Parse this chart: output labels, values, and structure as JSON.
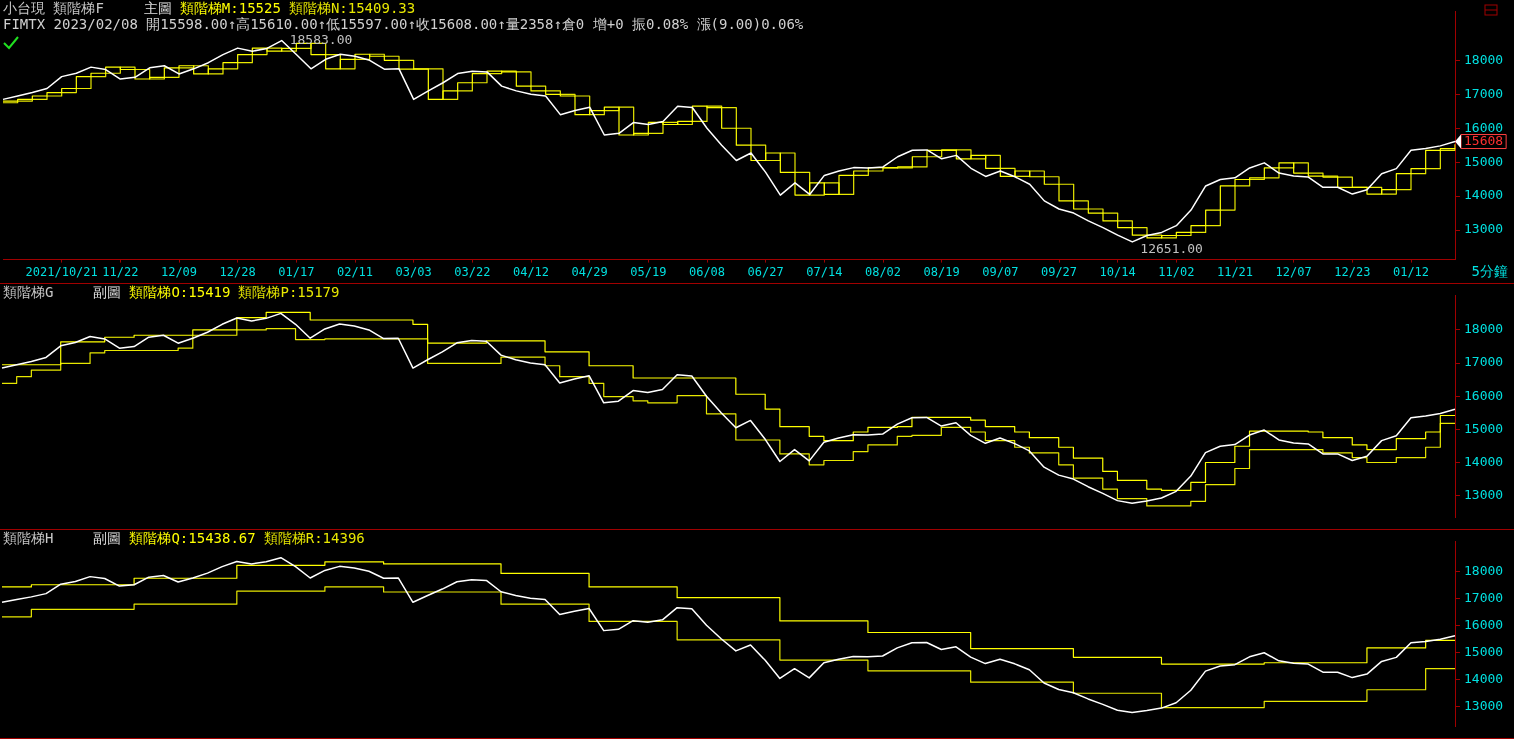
{
  "chart_data": [
    {
      "type": "line",
      "title": "小台現 類階梯F",
      "subtitle": "主圖",
      "xlabel": "5分鐘",
      "marker": "none",
      "annotations": [
        "FIMTX 2023/02/08 開15598.00↑高15610.00↑低15597.00↑收15608.00↑量2358↑倉0 增+0 振0.08% 漲(9.00)0.06%",
        "18583.00",
        "12651.00",
        "15608"
      ],
      "categories": [
        null,
        null,
        null,
        null,
        "2021/10/21",
        null,
        null,
        null,
        "11/22",
        null,
        null,
        null,
        "12/09",
        null,
        null,
        null,
        "12/28",
        null,
        null,
        null,
        "01/17",
        null,
        null,
        null,
        "02/11",
        null,
        null,
        null,
        "03/03",
        null,
        null,
        null,
        "03/22",
        null,
        null,
        null,
        "04/12",
        null,
        null,
        null,
        "04/29",
        null,
        null,
        null,
        "05/19",
        null,
        null,
        null,
        "06/08",
        null,
        null,
        null,
        "06/27",
        null,
        null,
        null,
        "07/14",
        null,
        null,
        null,
        "08/02",
        null,
        null,
        null,
        "08/19",
        null,
        null,
        null,
        "09/07",
        null,
        null,
        null,
        "09/27",
        null,
        null,
        null,
        "10/14",
        null,
        null,
        null,
        "11/02",
        null,
        null,
        null,
        "11/21",
        null,
        null,
        null,
        "12/07",
        null,
        null,
        null,
        "12/23",
        null,
        null,
        null,
        "01/12",
        null,
        null,
        null
      ],
      "series": [
        {
          "color": "#ffffff",
          "values": [
            16850,
            16950,
            17050,
            17170,
            17520,
            17620,
            17800,
            17730,
            17450,
            17500,
            17780,
            17840,
            17600,
            17750,
            17930,
            18170,
            18360,
            18270,
            18350,
            18583,
            18170,
            17750,
            18030,
            18180,
            18120,
            18000,
            17740,
            17750,
            16850,
            17100,
            17340,
            17610,
            17680,
            17660,
            17240,
            17100,
            17000,
            16950,
            16400,
            16520,
            16620,
            15800,
            15850,
            16170,
            16110,
            16200,
            16650,
            16610,
            16000,
            15500,
            15050,
            15270,
            14700,
            14030,
            14390,
            14050,
            14610,
            14740,
            14840,
            14830,
            14860,
            15160,
            15350,
            15360,
            15100,
            15200,
            14820,
            14580,
            14740,
            14570,
            14350,
            13860,
            13620,
            13500,
            13270,
            13070,
            12850,
            12651,
            12840,
            12930,
            13130,
            13590,
            14300,
            14490,
            14540,
            14830,
            14980,
            14680,
            14590,
            14560,
            14260,
            14260,
            14060,
            14190,
            14660,
            14810,
            15350,
            15400,
            15480,
            15608
          ]
        },
        {
          "type": "step",
          "name": "類階梯M:15525",
          "color": "#ffff00",
          "values": [
            16800,
            16850,
            16950,
            17050,
            17170,
            17520,
            17620,
            17800,
            17730,
            17450,
            17500,
            17780,
            17840,
            17600,
            17750,
            17930,
            18170,
            18360,
            18270,
            18350,
            18500,
            18170,
            17750,
            18030,
            18180,
            18120,
            18000,
            17740,
            17750,
            16850,
            17100,
            17340,
            17610,
            17680,
            17660,
            17240,
            17100,
            17000,
            16950,
            16400,
            16520,
            16620,
            15800,
            15850,
            16170,
            16110,
            16200,
            16650,
            16610,
            16000,
            15500,
            15050,
            15270,
            14700,
            14030,
            14390,
            14050,
            14610,
            14740,
            14840,
            14830,
            14860,
            15160,
            15350,
            15360,
            15100,
            15200,
            14820,
            14580,
            14740,
            14570,
            14350,
            13860,
            13620,
            13500,
            13270,
            13070,
            12850,
            12770,
            12840,
            12930,
            13130,
            13590,
            14300,
            14490,
            14540,
            14830,
            14980,
            14680,
            14590,
            14560,
            14260,
            14260,
            14060,
            14190,
            14660,
            14810,
            15350,
            15400,
            15525
          ]
        },
        {
          "type": "step",
          "name": "類階梯N:15409.33",
          "color": "#e8e800",
          "values": [
            16750,
            16800,
            16850,
            16950,
            17050,
            17170,
            17520,
            17620,
            17800,
            17730,
            17450,
            17500,
            17780,
            17840,
            17600,
            17750,
            17930,
            18170,
            18360,
            18270,
            18350,
            18500,
            18170,
            17750,
            18030,
            18180,
            18120,
            18000,
            17740,
            17750,
            16850,
            17100,
            17340,
            17610,
            17680,
            17660,
            17240,
            17100,
            17000,
            16950,
            16400,
            16520,
            16620,
            15800,
            15850,
            16170,
            16110,
            16200,
            16650,
            16610,
            16000,
            15500,
            15050,
            15270,
            14700,
            14030,
            14390,
            14050,
            14610,
            14740,
            14840,
            14830,
            14860,
            15160,
            15350,
            15360,
            15100,
            15200,
            14820,
            14580,
            14740,
            14570,
            14350,
            13860,
            13620,
            13500,
            13270,
            13070,
            12850,
            12770,
            12840,
            12930,
            13130,
            13590,
            14300,
            14490,
            14540,
            14830,
            14980,
            14680,
            14590,
            14560,
            14260,
            14260,
            14060,
            14190,
            14660,
            14810,
            15350,
            15409.33
          ]
        }
      ],
      "ylim": [
        12130,
        19430
      ],
      "yticks": [
        13000,
        14000,
        15000,
        16000,
        17000,
        18000
      ]
    },
    {
      "type": "line",
      "title": "類階梯G",
      "subtitle": "副圖",
      "marker": "none",
      "tick_labels": "y",
      "categories": [
        null,
        null,
        null,
        null,
        null,
        null,
        null,
        null,
        null,
        null,
        null,
        null,
        null,
        null,
        null,
        null,
        null,
        null,
        null,
        null,
        null,
        null,
        null,
        null,
        null,
        null,
        null,
        null,
        null,
        null,
        null,
        null,
        null,
        null,
        null,
        null,
        null,
        null,
        null,
        null,
        null,
        null,
        null,
        null,
        null,
        null,
        null,
        null,
        null,
        null,
        null,
        null,
        null,
        null,
        null,
        null,
        null,
        null,
        null,
        null,
        null,
        null,
        null,
        null,
        null,
        null,
        null,
        null,
        null,
        null,
        null,
        null,
        null,
        null,
        null,
        null,
        null,
        null,
        null,
        null,
        null,
        null,
        null,
        null,
        null,
        null,
        null,
        null,
        null,
        null,
        null,
        null,
        null,
        null,
        null,
        null,
        null,
        null,
        null,
        null
      ],
      "series": [
        {
          "color": "#ffffff",
          "values": [
            16850,
            16950,
            17050,
            17170,
            17520,
            17620,
            17800,
            17730,
            17450,
            17500,
            17780,
            17840,
            17600,
            17750,
            17930,
            18170,
            18360,
            18270,
            18350,
            18500,
            18170,
            17750,
            18030,
            18180,
            18120,
            18000,
            17740,
            17750,
            16850,
            17100,
            17340,
            17610,
            17680,
            17660,
            17240,
            17100,
            17000,
            16950,
            16400,
            16520,
            16620,
            15800,
            15850,
            16170,
            16110,
            16200,
            16650,
            16610,
            16000,
            15500,
            15050,
            15270,
            14700,
            14030,
            14390,
            14050,
            14610,
            14740,
            14840,
            14830,
            14860,
            15160,
            15350,
            15360,
            15100,
            15200,
            14820,
            14580,
            14740,
            14570,
            14350,
            13860,
            13620,
            13500,
            13270,
            13070,
            12850,
            12770,
            12840,
            12930,
            13130,
            13590,
            14300,
            14490,
            14540,
            14830,
            14980,
            14680,
            14590,
            14560,
            14260,
            14260,
            14060,
            14190,
            14660,
            14810,
            15350,
            15400,
            15480,
            15608
          ]
        },
        {
          "type": "step",
          "name": "類階梯O:15419",
          "color": "#ffff00",
          "values": [
            16950,
            16950,
            16950,
            16950,
            17640,
            17640,
            17640,
            17780,
            17780,
            17840,
            17840,
            17840,
            17840,
            18000,
            18000,
            18000,
            18370,
            18370,
            18530,
            18530,
            18530,
            18300,
            18300,
            18300,
            18300,
            18300,
            18300,
            18300,
            18170,
            17600,
            17600,
            17600,
            17600,
            17670,
            17670,
            17670,
            17670,
            17340,
            17340,
            17340,
            16920,
            16920,
            16920,
            16550,
            16550,
            16550,
            16550,
            16550,
            16550,
            16550,
            16060,
            16060,
            15610,
            15080,
            15080,
            14790,
            14660,
            14660,
            14920,
            15060,
            15060,
            15080,
            15360,
            15360,
            15360,
            15360,
            15280,
            15080,
            15080,
            14920,
            14750,
            14750,
            14460,
            14130,
            14130,
            13730,
            13460,
            13460,
            13200,
            13160,
            13160,
            13400,
            14000,
            14000,
            14490,
            14950,
            14950,
            14950,
            14950,
            14920,
            14750,
            14750,
            14530,
            14390,
            14390,
            14720,
            14720,
            14920,
            15419,
            15419
          ]
        },
        {
          "type": "step",
          "name": "類階梯P:15179",
          "color": "#e8e800",
          "values": [
            16390,
            16590,
            16790,
            16790,
            16990,
            16990,
            17310,
            17380,
            17380,
            17380,
            17380,
            17380,
            17450,
            17840,
            17840,
            17840,
            18000,
            18000,
            18040,
            18040,
            17710,
            17710,
            17730,
            17730,
            17730,
            17730,
            17730,
            17730,
            17730,
            16990,
            16990,
            16990,
            16990,
            16990,
            17180,
            17180,
            17180,
            16920,
            16590,
            16590,
            16390,
            15990,
            15990,
            15860,
            15800,
            15800,
            16020,
            16020,
            15470,
            15470,
            14680,
            14680,
            14680,
            14260,
            14260,
            13930,
            14060,
            14060,
            14330,
            14530,
            14530,
            14790,
            14820,
            14820,
            15060,
            15060,
            14920,
            14660,
            14660,
            14460,
            14290,
            14290,
            13930,
            13530,
            13530,
            13200,
            12910,
            12910,
            12690,
            12690,
            12690,
            12830,
            13330,
            13330,
            13820,
            14390,
            14390,
            14390,
            14390,
            14390,
            14290,
            14290,
            14150,
            14000,
            14000,
            14150,
            14150,
            14460,
            15179,
            15179
          ]
        }
      ],
      "ylim": [
        12350,
        19030
      ],
      "yticks": [
        13000,
        14000,
        15000,
        16000,
        17000,
        18000
      ]
    },
    {
      "type": "line",
      "title": "類階梯H",
      "subtitle": "副圖",
      "marker": "none",
      "tick_labels": "y",
      "categories": [
        null,
        null,
        null,
        null,
        null,
        null,
        null,
        null,
        null,
        null,
        null,
        null,
        null,
        null,
        null,
        null,
        null,
        null,
        null,
        null,
        null,
        null,
        null,
        null,
        null,
        null,
        null,
        null,
        null,
        null,
        null,
        null,
        null,
        null,
        null,
        null,
        null,
        null,
        null,
        null,
        null,
        null,
        null,
        null,
        null,
        null,
        null,
        null,
        null,
        null,
        null,
        null,
        null,
        null,
        null,
        null,
        null,
        null,
        null,
        null,
        null,
        null,
        null,
        null,
        null,
        null,
        null,
        null,
        null,
        null,
        null,
        null,
        null,
        null,
        null,
        null,
        null,
        null,
        null,
        null,
        null,
        null,
        null,
        null,
        null,
        null,
        null,
        null,
        null,
        null,
        null,
        null,
        null,
        null,
        null,
        null,
        null,
        null,
        null,
        null
      ],
      "series": [
        {
          "color": "#ffffff",
          "values": [
            16850,
            16950,
            17050,
            17170,
            17520,
            17620,
            17800,
            17730,
            17450,
            17500,
            17780,
            17840,
            17600,
            17750,
            17930,
            18170,
            18360,
            18270,
            18350,
            18500,
            18170,
            17750,
            18030,
            18180,
            18120,
            18000,
            17740,
            17750,
            16850,
            17100,
            17340,
            17610,
            17680,
            17660,
            17240,
            17100,
            17000,
            16950,
            16400,
            16520,
            16620,
            15800,
            15850,
            16170,
            16110,
            16200,
            16650,
            16610,
            16000,
            15500,
            15050,
            15270,
            14700,
            14030,
            14390,
            14050,
            14610,
            14740,
            14840,
            14830,
            14860,
            15160,
            15350,
            15360,
            15100,
            15200,
            14820,
            14580,
            14740,
            14570,
            14350,
            13860,
            13620,
            13500,
            13270,
            13070,
            12850,
            12770,
            12840,
            12930,
            13130,
            13590,
            14300,
            14490,
            14540,
            14830,
            14980,
            14680,
            14590,
            14560,
            14260,
            14260,
            14060,
            14190,
            14660,
            14810,
            15350,
            15400,
            15480,
            15608
          ]
        },
        {
          "type": "step",
          "name": "類階梯Q:15438.67",
          "color": "#ffff00",
          "values": [
            17420,
            17420,
            17500,
            17500,
            17500,
            17500,
            17500,
            17500,
            17500,
            17740,
            17740,
            17740,
            17740,
            17740,
            17740,
            17740,
            18220,
            18220,
            18220,
            18220,
            18220,
            18220,
            18350,
            18350,
            18350,
            18350,
            18270,
            18270,
            18270,
            18270,
            18270,
            18270,
            18270,
            18270,
            17920,
            17920,
            17920,
            17920,
            17920,
            17920,
            17420,
            17420,
            17420,
            17420,
            17420,
            17420,
            17020,
            17020,
            17020,
            17020,
            17020,
            17020,
            17020,
            16160,
            16160,
            16160,
            16160,
            16160,
            16160,
            15730,
            15730,
            15730,
            15730,
            15730,
            15730,
            15730,
            15130,
            15130,
            15130,
            15130,
            15130,
            15130,
            15130,
            14810,
            14810,
            14810,
            14810,
            14810,
            14810,
            14560,
            14560,
            14560,
            14560,
            14560,
            14560,
            14560,
            14610,
            14610,
            14610,
            14610,
            14610,
            14610,
            14610,
            15160,
            15160,
            15160,
            15160,
            15438.67,
            15438.67,
            15438.67
          ]
        },
        {
          "type": "step",
          "name": "類階梯R:14396",
          "color": "#e8e800",
          "values": [
            16310,
            16310,
            16590,
            16590,
            16590,
            16590,
            16590,
            16590,
            16590,
            16780,
            16780,
            16780,
            16780,
            16780,
            16780,
            16780,
            17260,
            17260,
            17260,
            17260,
            17260,
            17260,
            17420,
            17420,
            17420,
            17420,
            17230,
            17230,
            17230,
            17230,
            17230,
            17230,
            17230,
            17230,
            16780,
            16780,
            16780,
            16780,
            16780,
            16780,
            16140,
            16140,
            16140,
            16140,
            16140,
            16140,
            15460,
            15460,
            15460,
            15460,
            15460,
            15460,
            15460,
            14710,
            14710,
            14710,
            14710,
            14710,
            14710,
            14310,
            14310,
            14310,
            14310,
            14310,
            14310,
            14310,
            13890,
            13890,
            13890,
            13890,
            13890,
            13890,
            13890,
            13480,
            13480,
            13480,
            13480,
            13480,
            13480,
            12950,
            12950,
            12950,
            12950,
            12950,
            12950,
            12950,
            13180,
            13180,
            13180,
            13180,
            13180,
            13180,
            13180,
            13610,
            13610,
            13610,
            13610,
            14396,
            14396,
            14396
          ]
        }
      ],
      "ylim": [
        12260,
        19090
      ],
      "yticks": [
        13000,
        14000,
        15000,
        16000,
        17000,
        18000
      ]
    }
  ]
}
